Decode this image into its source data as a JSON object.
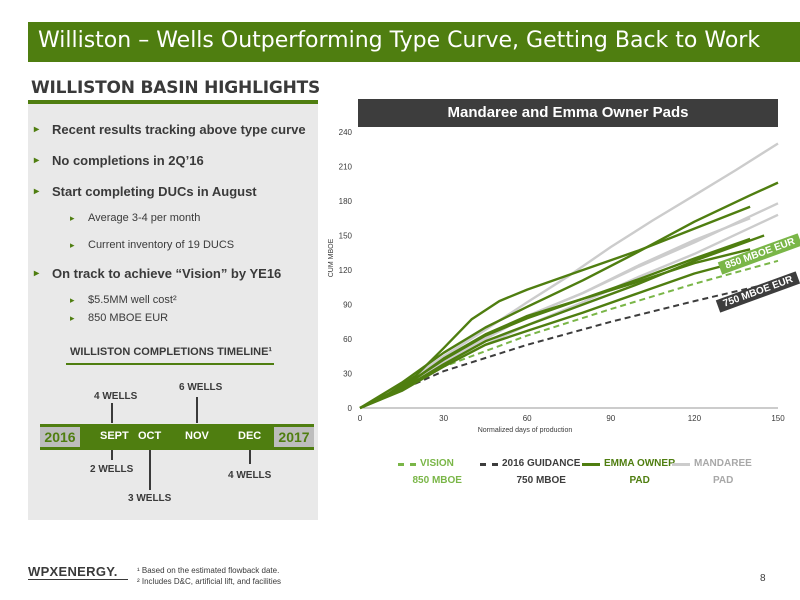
{
  "title": "Williston – Wells Outperforming Type Curve, Getting Back to Work",
  "highlights": {
    "heading": "WILLISTON BASIN HIGHLIGHTS",
    "bullets": [
      {
        "text": "Recent results tracking above type curve",
        "level": 1
      },
      {
        "text": "No completions in 2Q’16",
        "level": 1
      },
      {
        "text": "Start completing DUCs in August",
        "level": 1
      },
      {
        "text": "Average 3-4 per month",
        "level": 2
      },
      {
        "text": "Current inventory of 19 DUCS",
        "level": 2
      },
      {
        "text": "On track to achieve “Vision” by YE16",
        "level": 1
      },
      {
        "text": "$5.5MM well cost²",
        "level": 2
      },
      {
        "text": "850 MBOE EUR",
        "level": 2
      }
    ]
  },
  "timeline": {
    "title": "WILLISTON COMPLETIONS TIMELINE¹",
    "start_year": "2016",
    "end_year": "2017",
    "months": [
      "SEPT",
      "OCT",
      "NOV",
      "DEC"
    ],
    "above": [
      {
        "month": "SEPT",
        "label": "4 WELLS"
      },
      {
        "month": "NOV",
        "label": "6 WELLS"
      }
    ],
    "below": [
      {
        "month": "SEPT",
        "label": "2 WELLS"
      },
      {
        "month": "OCT",
        "label": "3 WELLS"
      },
      {
        "month": "DEC",
        "label": "4 WELLS"
      }
    ]
  },
  "chart_data": {
    "type": "line",
    "title": "Mandaree and Emma Owner Pads",
    "xlabel": "Normalized days of production",
    "ylabel": "CUM MBOE",
    "xlim": [
      0,
      150
    ],
    "ylim": [
      0,
      240
    ],
    "xticks": [
      0,
      30,
      60,
      90,
      120,
      150
    ],
    "yticks": [
      0,
      30,
      60,
      90,
      120,
      150,
      180,
      210,
      240
    ],
    "grid": false,
    "legend_position": "bottom",
    "annotations": [
      "850 MBOE EUR",
      "750 MBOE EUR"
    ],
    "series": [
      {
        "name": "VISION 850 MBOE",
        "color": "#7ab648",
        "style": "dashed",
        "x": [
          0,
          30,
          60,
          90,
          120,
          150
        ],
        "y": [
          0,
          36,
          63,
          86,
          108,
          128
        ]
      },
      {
        "name": "2016 GUIDANCE 750 MBOE",
        "color": "#3d3d3d",
        "style": "dashed",
        "x": [
          0,
          30,
          60,
          90,
          120,
          150
        ],
        "y": [
          0,
          32,
          55,
          75,
          93,
          110
        ]
      },
      {
        "name": "EMMA OWNER PAD",
        "color": "#4f7e10",
        "style": "solid",
        "x": [
          0,
          10,
          20,
          30,
          40,
          50,
          60,
          80,
          100,
          120,
          140
        ],
        "y": [
          0,
          12,
          28,
          52,
          77,
          93,
          103,
          120,
          137,
          156,
          175
        ]
      },
      {
        "name": "EMMA OWNER PAD",
        "color": "#4f7e10",
        "style": "solid",
        "x": [
          0,
          15,
          30,
          45,
          60,
          80,
          100,
          120,
          140
        ],
        "y": [
          0,
          18,
          42,
          63,
          78,
          95,
          112,
          130,
          147
        ]
      },
      {
        "name": "EMMA OWNER PAD",
        "color": "#4f7e10",
        "style": "solid",
        "x": [
          0,
          15,
          30,
          45,
          60,
          80,
          100,
          120,
          145
        ],
        "y": [
          0,
          16,
          38,
          58,
          72,
          90,
          108,
          128,
          150
        ]
      },
      {
        "name": "EMMA OWNER PAD",
        "color": "#4f7e10",
        "style": "solid",
        "x": [
          0,
          15,
          30,
          45,
          60,
          80,
          100,
          120,
          140
        ],
        "y": [
          0,
          17,
          43,
          64,
          80,
          95,
          110,
          126,
          138
        ]
      },
      {
        "name": "EMMA OWNER PAD",
        "color": "#4f7e10",
        "style": "solid",
        "x": [
          0,
          15,
          30,
          45,
          60,
          80,
          100,
          120,
          140,
          150
        ],
        "y": [
          0,
          22,
          48,
          70,
          88,
          111,
          136,
          162,
          185,
          196
        ]
      },
      {
        "name": "EMMA OWNER PAD",
        "color": "#4f7e10",
        "style": "solid",
        "x": [
          0,
          15,
          30,
          45,
          60,
          80,
          100,
          120,
          145
        ],
        "y": [
          0,
          15,
          36,
          55,
          67,
          83,
          100,
          117,
          133
        ]
      },
      {
        "name": "MANDAREE PAD",
        "color": "#cccccc",
        "style": "solid",
        "x": [
          0,
          15,
          30,
          45,
          60,
          75,
          90,
          105,
          120,
          135,
          150
        ],
        "y": [
          0,
          20,
          45,
          68,
          92,
          115,
          140,
          163,
          185,
          207,
          230
        ]
      },
      {
        "name": "MANDAREE PAD",
        "color": "#cccccc",
        "style": "solid",
        "x": [
          0,
          15,
          30,
          45,
          60,
          80,
          100,
          120,
          150
        ],
        "y": [
          0,
          17,
          40,
          60,
          80,
          100,
          123,
          144,
          178
        ]
      },
      {
        "name": "MANDAREE PAD",
        "color": "#cccccc",
        "style": "solid",
        "x": [
          0,
          15,
          30,
          45,
          60,
          80,
          100,
          120,
          150
        ],
        "y": [
          0,
          15,
          36,
          55,
          72,
          92,
          114,
          134,
          168
        ]
      },
      {
        "name": "MANDAREE PAD",
        "color": "#cccccc",
        "style": "solid",
        "x": [
          0,
          15,
          30,
          45,
          60,
          80,
          100,
          120,
          140
        ],
        "y": [
          0,
          18,
          42,
          62,
          80,
          100,
          124,
          146,
          165
        ]
      }
    ],
    "legend": [
      {
        "line1": "VISION",
        "line2": "850 MBOE",
        "color": "#7ab648",
        "style": "dashed",
        "text_color": "#7ab648"
      },
      {
        "line1": "2016 GUIDANCE",
        "line2": "750 MBOE",
        "color": "#3d3d3d",
        "style": "dashed",
        "text_color": "#3d3d3d"
      },
      {
        "line1": "EMMA OWNER",
        "line2": "PAD",
        "color": "#4f7e10",
        "style": "solid",
        "text_color": "#4f7e10"
      },
      {
        "line1": "MANDAREE",
        "line2": "PAD",
        "color": "#cccccc",
        "style": "solid",
        "text_color": "#a8a8a8"
      }
    ]
  },
  "footer": {
    "logo": "WPXENERGY.",
    "footnotes": [
      "¹ Based on the estimated flowback date.",
      "² Includes D&C, artificial lift, and facilities"
    ],
    "page": "8"
  },
  "colors": {
    "accent": "#4f7e10",
    "dark": "#3d3d3d",
    "vision": "#7ab648",
    "mandaree": "#cccccc"
  }
}
